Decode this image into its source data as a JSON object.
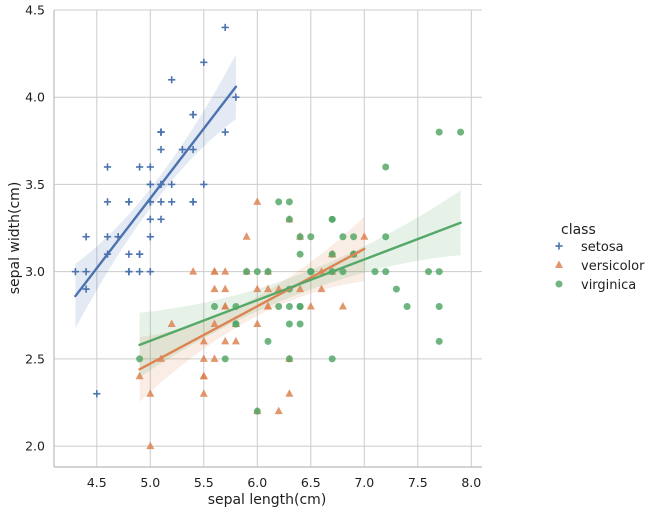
{
  "chart_data": {
    "type": "scatter",
    "title": "",
    "xlabel": "sepal length(cm)",
    "ylabel": "sepal width(cm)",
    "xlim": [
      4.1,
      8.1
    ],
    "ylim": [
      1.88,
      4.5
    ],
    "xticks": [
      "4.5",
      "5.0",
      "5.5",
      "6.0",
      "6.5",
      "7.0",
      "7.5",
      "8.0"
    ],
    "yticks": [
      "2.0",
      "2.5",
      "3.0",
      "3.5",
      "4.0",
      "4.5"
    ],
    "grid": true,
    "legend_title": "class",
    "legend_position": "right",
    "regression": true,
    "series": [
      {
        "name": "setosa",
        "color": "#4c72b0",
        "marker": "plus",
        "points": [
          [
            5.1,
            3.5
          ],
          [
            4.9,
            3.0
          ],
          [
            4.7,
            3.2
          ],
          [
            4.6,
            3.1
          ],
          [
            5.0,
            3.6
          ],
          [
            5.4,
            3.9
          ],
          [
            4.6,
            3.4
          ],
          [
            5.0,
            3.4
          ],
          [
            4.4,
            2.9
          ],
          [
            4.9,
            3.1
          ],
          [
            5.4,
            3.7
          ],
          [
            4.8,
            3.4
          ],
          [
            4.8,
            3.0
          ],
          [
            4.3,
            3.0
          ],
          [
            5.8,
            4.0
          ],
          [
            5.7,
            4.4
          ],
          [
            5.4,
            3.9
          ],
          [
            5.1,
            3.5
          ],
          [
            5.7,
            3.8
          ],
          [
            5.1,
            3.8
          ],
          [
            5.4,
            3.4
          ],
          [
            5.1,
            3.7
          ],
          [
            4.6,
            3.6
          ],
          [
            5.1,
            3.3
          ],
          [
            4.8,
            3.4
          ],
          [
            5.0,
            3.0
          ],
          [
            5.0,
            3.4
          ],
          [
            5.2,
            3.5
          ],
          [
            5.2,
            3.4
          ],
          [
            4.7,
            3.2
          ],
          [
            4.8,
            3.1
          ],
          [
            5.4,
            3.4
          ],
          [
            5.2,
            4.1
          ],
          [
            5.5,
            4.2
          ],
          [
            4.9,
            3.1
          ],
          [
            5.0,
            3.2
          ],
          [
            5.5,
            3.5
          ],
          [
            4.9,
            3.6
          ],
          [
            4.4,
            3.0
          ],
          [
            5.1,
            3.4
          ],
          [
            5.0,
            3.5
          ],
          [
            4.5,
            2.3
          ],
          [
            4.4,
            3.2
          ],
          [
            5.0,
            3.5
          ],
          [
            5.1,
            3.8
          ],
          [
            4.8,
            3.0
          ],
          [
            5.1,
            3.8
          ],
          [
            4.6,
            3.2
          ],
          [
            5.3,
            3.7
          ],
          [
            5.0,
            3.3
          ]
        ],
        "fit": [
          [
            4.3,
            2.86
          ],
          [
            5.8,
            4.06
          ]
        ]
      },
      {
        "name": "versicolor",
        "color": "#dd8452",
        "marker": "triangle",
        "points": [
          [
            7.0,
            3.2
          ],
          [
            6.4,
            3.2
          ],
          [
            6.9,
            3.1
          ],
          [
            5.5,
            2.3
          ],
          [
            6.5,
            2.8
          ],
          [
            5.7,
            2.8
          ],
          [
            6.3,
            3.3
          ],
          [
            4.9,
            2.4
          ],
          [
            6.6,
            2.9
          ],
          [
            5.2,
            2.7
          ],
          [
            5.0,
            2.0
          ],
          [
            5.9,
            3.0
          ],
          [
            6.0,
            2.2
          ],
          [
            6.1,
            2.9
          ],
          [
            5.6,
            2.9
          ],
          [
            6.7,
            3.1
          ],
          [
            5.6,
            3.0
          ],
          [
            5.8,
            2.7
          ],
          [
            6.2,
            2.2
          ],
          [
            5.6,
            2.5
          ],
          [
            5.9,
            3.2
          ],
          [
            6.1,
            2.8
          ],
          [
            6.3,
            2.5
          ],
          [
            6.1,
            2.8
          ],
          [
            6.4,
            2.9
          ],
          [
            6.6,
            3.0
          ],
          [
            6.8,
            2.8
          ],
          [
            6.7,
            3.0
          ],
          [
            6.0,
            2.9
          ],
          [
            5.7,
            2.6
          ],
          [
            5.5,
            2.4
          ],
          [
            5.5,
            2.4
          ],
          [
            5.8,
            2.7
          ],
          [
            6.0,
            2.7
          ],
          [
            5.4,
            3.0
          ],
          [
            6.0,
            3.4
          ],
          [
            6.7,
            3.1
          ],
          [
            6.3,
            2.3
          ],
          [
            5.6,
            3.0
          ],
          [
            5.5,
            2.5
          ],
          [
            5.5,
            2.6
          ],
          [
            6.1,
            3.0
          ],
          [
            5.8,
            2.6
          ],
          [
            5.0,
            2.3
          ],
          [
            5.6,
            2.7
          ],
          [
            5.7,
            3.0
          ],
          [
            5.7,
            2.9
          ],
          [
            6.2,
            2.9
          ],
          [
            5.1,
            2.5
          ],
          [
            5.7,
            2.8
          ]
        ],
        "fit": [
          [
            4.9,
            2.44
          ],
          [
            7.0,
            3.13
          ]
        ]
      },
      {
        "name": "virginica",
        "color": "#55a868",
        "marker": "circle",
        "points": [
          [
            6.3,
            3.3
          ],
          [
            5.8,
            2.7
          ],
          [
            7.1,
            3.0
          ],
          [
            6.3,
            2.9
          ],
          [
            6.5,
            3.0
          ],
          [
            7.6,
            3.0
          ],
          [
            4.9,
            2.5
          ],
          [
            7.3,
            2.9
          ],
          [
            6.7,
            2.5
          ],
          [
            7.2,
            3.6
          ],
          [
            6.5,
            3.2
          ],
          [
            6.4,
            2.7
          ],
          [
            6.8,
            3.0
          ],
          [
            5.7,
            2.5
          ],
          [
            5.8,
            2.8
          ],
          [
            6.4,
            3.2
          ],
          [
            6.5,
            3.0
          ],
          [
            7.7,
            3.8
          ],
          [
            7.7,
            2.6
          ],
          [
            6.0,
            2.2
          ],
          [
            6.9,
            3.2
          ],
          [
            5.6,
            2.8
          ],
          [
            7.7,
            2.8
          ],
          [
            6.3,
            2.7
          ],
          [
            6.7,
            3.3
          ],
          [
            7.2,
            3.2
          ],
          [
            6.2,
            2.8
          ],
          [
            6.1,
            3.0
          ],
          [
            6.4,
            2.8
          ],
          [
            7.2,
            3.0
          ],
          [
            7.4,
            2.8
          ],
          [
            7.9,
            3.8
          ],
          [
            6.4,
            2.8
          ],
          [
            6.3,
            2.8
          ],
          [
            6.1,
            2.6
          ],
          [
            7.7,
            3.0
          ],
          [
            6.3,
            3.4
          ],
          [
            6.4,
            3.1
          ],
          [
            6.0,
            3.0
          ],
          [
            6.9,
            3.1
          ],
          [
            6.7,
            3.1
          ],
          [
            6.9,
            3.1
          ],
          [
            5.8,
            2.7
          ],
          [
            6.8,
            3.2
          ],
          [
            6.7,
            3.3
          ],
          [
            6.7,
            3.0
          ],
          [
            6.3,
            2.5
          ],
          [
            6.5,
            3.0
          ],
          [
            6.2,
            3.4
          ],
          [
            5.9,
            3.0
          ]
        ],
        "fit": [
          [
            4.9,
            2.58
          ],
          [
            7.9,
            3.28
          ]
        ]
      }
    ]
  }
}
